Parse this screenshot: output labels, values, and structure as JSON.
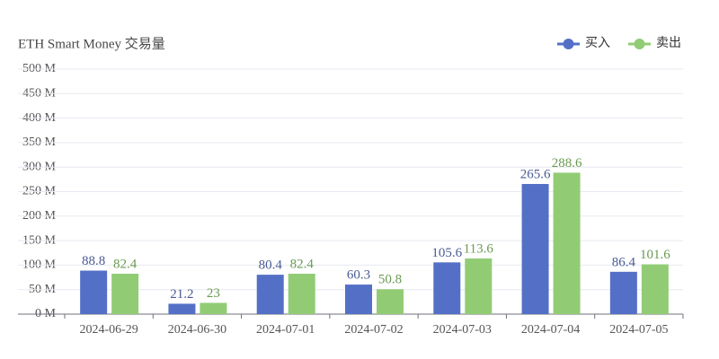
{
  "chart_data": {
    "type": "bar",
    "title": "ETH Smart Money 交易量",
    "categories": [
      "2024-06-29",
      "2024-06-30",
      "2024-07-01",
      "2024-07-02",
      "2024-07-03",
      "2024-07-04",
      "2024-07-05"
    ],
    "series": [
      {
        "name": "买入",
        "color": "#5470c6",
        "values": [
          88.8,
          21.2,
          80.4,
          60.3,
          105.6,
          265.6,
          86.4
        ]
      },
      {
        "name": "卖出",
        "color": "#91cc75",
        "values": [
          82.4,
          23,
          82.4,
          50.8,
          113.6,
          288.6,
          101.6
        ]
      }
    ],
    "ylim": [
      0,
      500
    ],
    "yticks": [
      {
        "value": 0,
        "label": "0 M"
      },
      {
        "value": 50,
        "label": "50 M"
      },
      {
        "value": 100,
        "label": "100 M"
      },
      {
        "value": 150,
        "label": "150 M"
      },
      {
        "value": 200,
        "label": "200 M"
      },
      {
        "value": 250,
        "label": "250 M"
      },
      {
        "value": 300,
        "label": "300 M"
      },
      {
        "value": 350,
        "label": "350 M"
      },
      {
        "value": 400,
        "label": "400 M"
      },
      {
        "value": 450,
        "label": "450 M"
      },
      {
        "value": 500,
        "label": "500 M"
      }
    ],
    "grid": true,
    "legend": "top-right"
  }
}
